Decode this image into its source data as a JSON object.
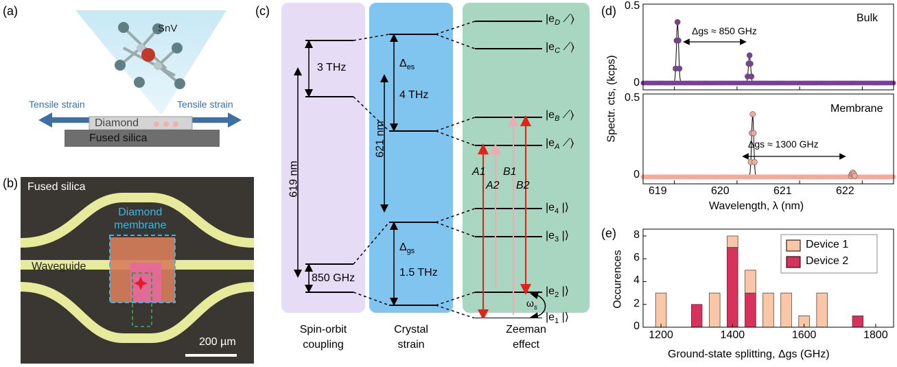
{
  "panel_labels": {
    "a": "(a)",
    "b": "(b)",
    "c": "(c)",
    "d": "(d)",
    "e": "(e)"
  },
  "panel_a": {
    "molecule_label": "SnV",
    "strain_left": "Tensile strain",
    "strain_right": "Tensile strain",
    "diamond_label": "Diamond",
    "substrate_label": "Fused silica"
  },
  "panel_b": {
    "substrate_label": "Fused silica",
    "membrane_label_1": "Diamond",
    "membrane_label_2": "membrane",
    "waveguide_label": "Waveguide",
    "scale_bar": "200 µm"
  },
  "panel_c": {
    "col1_caption_1": "Spin-orbit",
    "col1_caption_2": "coupling",
    "col2_caption_1": "Crystal",
    "col2_caption_2": "strain",
    "col3_caption_1": "Zeeman",
    "col3_caption_2": "effect",
    "so_split_excited": "3 THz",
    "so_split_ground": "850 GHz",
    "wavelength_so": "619 nm",
    "wavelength_strain": "621 nm",
    "delta_es": "Δ",
    "delta_es_sub": "es",
    "es_split": "4 THz",
    "delta_gs": "Δ",
    "delta_gs_sub": "gs",
    "gs_split": "1.5 THz",
    "levels": [
      "|e",
      "|e",
      "|e",
      "|e",
      "|e",
      "|e",
      "|e",
      "|e"
    ],
    "level_subs": [
      "D",
      "C",
      "B",
      "A",
      "4",
      "3",
      "2",
      "1"
    ],
    "transitions": [
      "A1",
      "A2",
      "B1",
      "B2"
    ],
    "omega": "ω",
    "omega_sub": "s",
    "colors": {
      "col1": "#e6dcf6",
      "col2": "#80c5ef",
      "col3": "#a9d6c0",
      "transition": "#e2231a",
      "faint": "#f0aab0"
    }
  },
  "panel_d": {
    "ylabel": "Spectr. cts, (kcps)",
    "xlabel": "Wavelength, λ (nm)",
    "top_label": "Bulk",
    "bottom_label": "Membrane",
    "top_annot": "Δgs ≈ 850 GHz",
    "bottom_annot": "Δgs ≈ 1300 GHz",
    "xticks": [
      "619",
      "620",
      "621",
      "622"
    ],
    "yticks": [
      "0",
      "0.5"
    ]
  },
  "panel_e": {
    "ylabel": "Occurences",
    "xlabel": "Ground-state splitting, Δgs (GHz)",
    "legend": [
      "Device 1",
      "Device 2"
    ],
    "xticks": [
      "1200",
      "1400",
      "1600",
      "1800"
    ],
    "yticks": [
      "0",
      "2",
      "4",
      "6",
      "8"
    ]
  },
  "chart_data": [
    {
      "type": "line",
      "xlabel": "Wavelength, λ (nm)",
      "ylabel": "Spectr. cts, (kcps)",
      "xlim": [
        618.5,
        622.5
      ],
      "ylim": [
        0,
        0.55
      ],
      "series": [
        {
          "name": "Bulk",
          "color": "#7b3f98",
          "peaks": [
            {
              "x": 619.05,
              "y": 0.44
            },
            {
              "x": 620.2,
              "y": 0.2
            }
          ],
          "baseline": 0.01
        },
        {
          "name": "Membrane",
          "color": "#f4a99a",
          "peaks": [
            {
              "x": 620.25,
              "y": 0.43
            },
            {
              "x": 621.85,
              "y": 0.03
            }
          ],
          "baseline": 0.01
        }
      ]
    },
    {
      "type": "bar",
      "xlabel": "Ground-state splitting, Δgs (GHz)",
      "ylabel": "Occurences",
      "xlim": [
        1150,
        1850
      ],
      "ylim": [
        0,
        8.6
      ],
      "x": [
        1200,
        1300,
        1350,
        1400,
        1450,
        1500,
        1550,
        1600,
        1650,
        1700,
        1750,
        1800
      ],
      "series": [
        {
          "name": "Device 1",
          "color": "#f9c6a8",
          "values": [
            3,
            0,
            3,
            8,
            5,
            3,
            3,
            1,
            3,
            0,
            0,
            0
          ]
        },
        {
          "name": "Device 2",
          "color": "#d6325b",
          "values": [
            0,
            2,
            0,
            7,
            3,
            0,
            0,
            0,
            0,
            0,
            1,
            0
          ]
        }
      ]
    }
  ]
}
